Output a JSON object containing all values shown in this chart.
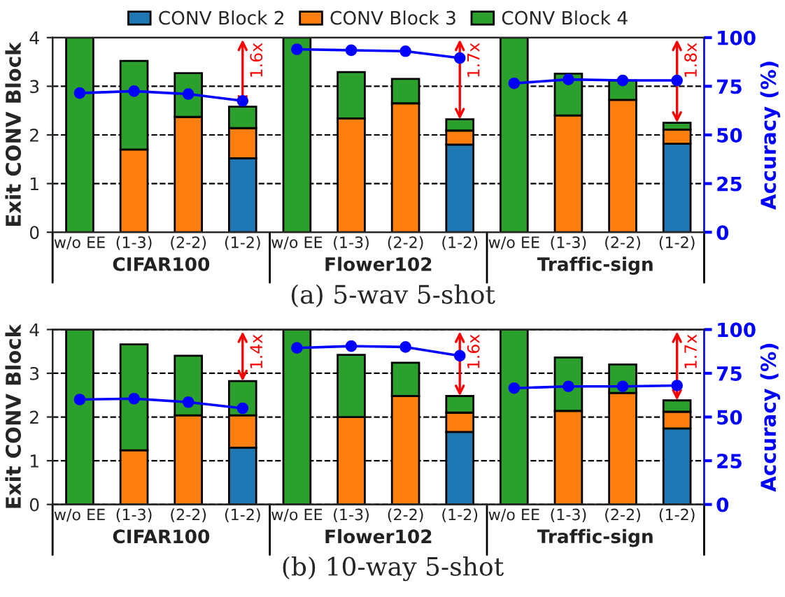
{
  "chart_data": [
    {
      "type": "bar",
      "stacked": true,
      "title": "(a) 5-wav 5-shot",
      "ylabel": "Exit CONV Block",
      "y2label": "Accuracy (%)",
      "categories": [
        "w/o EE",
        "(1-3)",
        "(2-2)",
        "(1-2)",
        "w/o EE",
        "(1-3)",
        "(2-2)",
        "(1-2)",
        "w/o EE",
        "(1-3)",
        "(2-2)",
        "(1-2)"
      ],
      "series": [
        {
          "name": "CONV Block 2",
          "color": "#1f77b4",
          "values": [
            0,
            0,
            0,
            1.52,
            0,
            0,
            0,
            1.8,
            0,
            0,
            0,
            1.82
          ]
        },
        {
          "name": "CONV Block 3",
          "color": "#ff7f0e",
          "values": [
            0,
            1.7,
            2.37,
            0.62,
            0,
            2.34,
            2.65,
            0.29,
            0,
            2.4,
            2.72,
            0.29
          ]
        },
        {
          "name": "CONV Block 4",
          "color": "#2ca02c",
          "values": [
            4,
            1.82,
            0.9,
            0.44,
            4,
            0.95,
            0.5,
            0.23,
            4,
            0.86,
            0.4,
            0.14
          ]
        },
        {
          "type": "line",
          "axis": "y2",
          "color": "#0000ff",
          "values": [
            71.5,
            72.5,
            71,
            67.5,
            null,
            null,
            null,
            null,
            null,
            null,
            null,
            null
          ]
        },
        {
          "type": "line",
          "axis": "y2",
          "color": "#0000ff",
          "values": [
            null,
            null,
            null,
            null,
            94,
            93.5,
            93,
            89.5,
            null,
            null,
            null,
            null
          ]
        },
        {
          "type": "line",
          "axis": "y2",
          "color": "#0000ff",
          "values": [
            null,
            null,
            null,
            null,
            null,
            null,
            null,
            null,
            76.5,
            78.5,
            78,
            78
          ]
        }
      ],
      "marker": "circle",
      "line_style": "solid",
      "ylim": [
        0,
        4
      ],
      "yticks": [
        0,
        1,
        2,
        3,
        4
      ],
      "y2lim": [
        0,
        100
      ],
      "y2ticks": [
        0,
        25,
        50,
        75,
        100
      ],
      "grid": "y",
      "legend": "top",
      "annotations": [
        "CIFAR100",
        "Flower102",
        "Traffic-sign",
        {
          "text": "1.6x",
          "y": 2.58
        },
        {
          "text": "1.7x",
          "y": 2.32
        },
        {
          "text": "1.8x",
          "y": 2.25
        }
      ]
    },
    {
      "type": "bar",
      "stacked": true,
      "title": "(b) 10-way 5-shot",
      "ylabel": "Exit CONV Block",
      "y2label": "Accuracy (%)",
      "categories": [
        "w/o EE",
        "(1-3)",
        "(2-2)",
        "(1-2)",
        "w/o EE",
        "(1-3)",
        "(2-2)",
        "(1-2)",
        "w/o EE",
        "(1-3)",
        "(2-2)",
        "(1-2)"
      ],
      "series": [
        {
          "color": "#1f77b4",
          "values": [
            0,
            0,
            0,
            1.3,
            0,
            0,
            0,
            1.66,
            0,
            0,
            0,
            1.74
          ]
        },
        {
          "color": "#ff7f0e",
          "values": [
            0,
            1.24,
            2.04,
            0.74,
            0,
            2.0,
            2.48,
            0.44,
            0,
            2.14,
            2.55,
            0.38
          ]
        },
        {
          "color": "#2ca02c",
          "values": [
            4,
            2.42,
            1.36,
            0.78,
            4,
            1.42,
            0.76,
            0.38,
            4,
            1.22,
            0.65,
            0.26
          ]
        },
        {
          "type": "line",
          "axis": "y2",
          "color": "#0000ff",
          "values": [
            60,
            60.5,
            58.5,
            55,
            null,
            null,
            null,
            null,
            null,
            null,
            null,
            null
          ]
        },
        {
          "type": "line",
          "axis": "y2",
          "color": "#0000ff",
          "values": [
            null,
            null,
            null,
            null,
            89.5,
            90.5,
            90,
            85,
            null,
            null,
            null,
            null
          ]
        },
        {
          "type": "line",
          "axis": "y2",
          "color": "#0000ff",
          "values": [
            null,
            null,
            null,
            null,
            null,
            null,
            null,
            null,
            66.5,
            67.5,
            67.5,
            68
          ]
        }
      ],
      "marker": "circle",
      "line_style": "solid",
      "ylim": [
        0,
        4
      ],
      "yticks": [
        0,
        1,
        2,
        3,
        4
      ],
      "y2lim": [
        0,
        100
      ],
      "y2ticks": [
        0,
        25,
        50,
        75,
        100
      ],
      "grid": "y",
      "annotations": [
        "CIFAR100",
        "Flower102",
        "Traffic-sign",
        {
          "text": "1.4x",
          "y": 2.82
        },
        {
          "text": "1.6x",
          "y": 2.48
        },
        {
          "text": "1.7x",
          "y": 2.38
        }
      ]
    }
  ]
}
